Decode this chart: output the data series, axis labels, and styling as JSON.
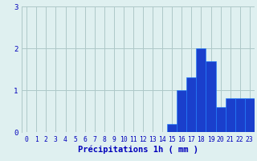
{
  "hours": [
    0,
    1,
    2,
    3,
    4,
    5,
    6,
    7,
    8,
    9,
    10,
    11,
    12,
    13,
    14,
    15,
    16,
    17,
    18,
    19,
    20,
    21,
    22,
    23
  ],
  "values": [
    0,
    0,
    0,
    0,
    0,
    0,
    0,
    0,
    0,
    0,
    0,
    0,
    0,
    0,
    0,
    0.2,
    1.0,
    1.3,
    2.0,
    1.7,
    0.6,
    0.8,
    0.8,
    0.8
  ],
  "bar_color": "#1a3fcc",
  "bar_edge_color": "#1a7fff",
  "background_color": "#dff0f0",
  "grid_color": "#aec8c8",
  "text_color": "#0000bb",
  "xlabel": "Précipitations 1h ( mm )",
  "ylim": [
    0,
    3
  ],
  "yticks": [
    0,
    1,
    2,
    3
  ],
  "label_fontsize": 7.5,
  "tick_fontsize": 5.8
}
